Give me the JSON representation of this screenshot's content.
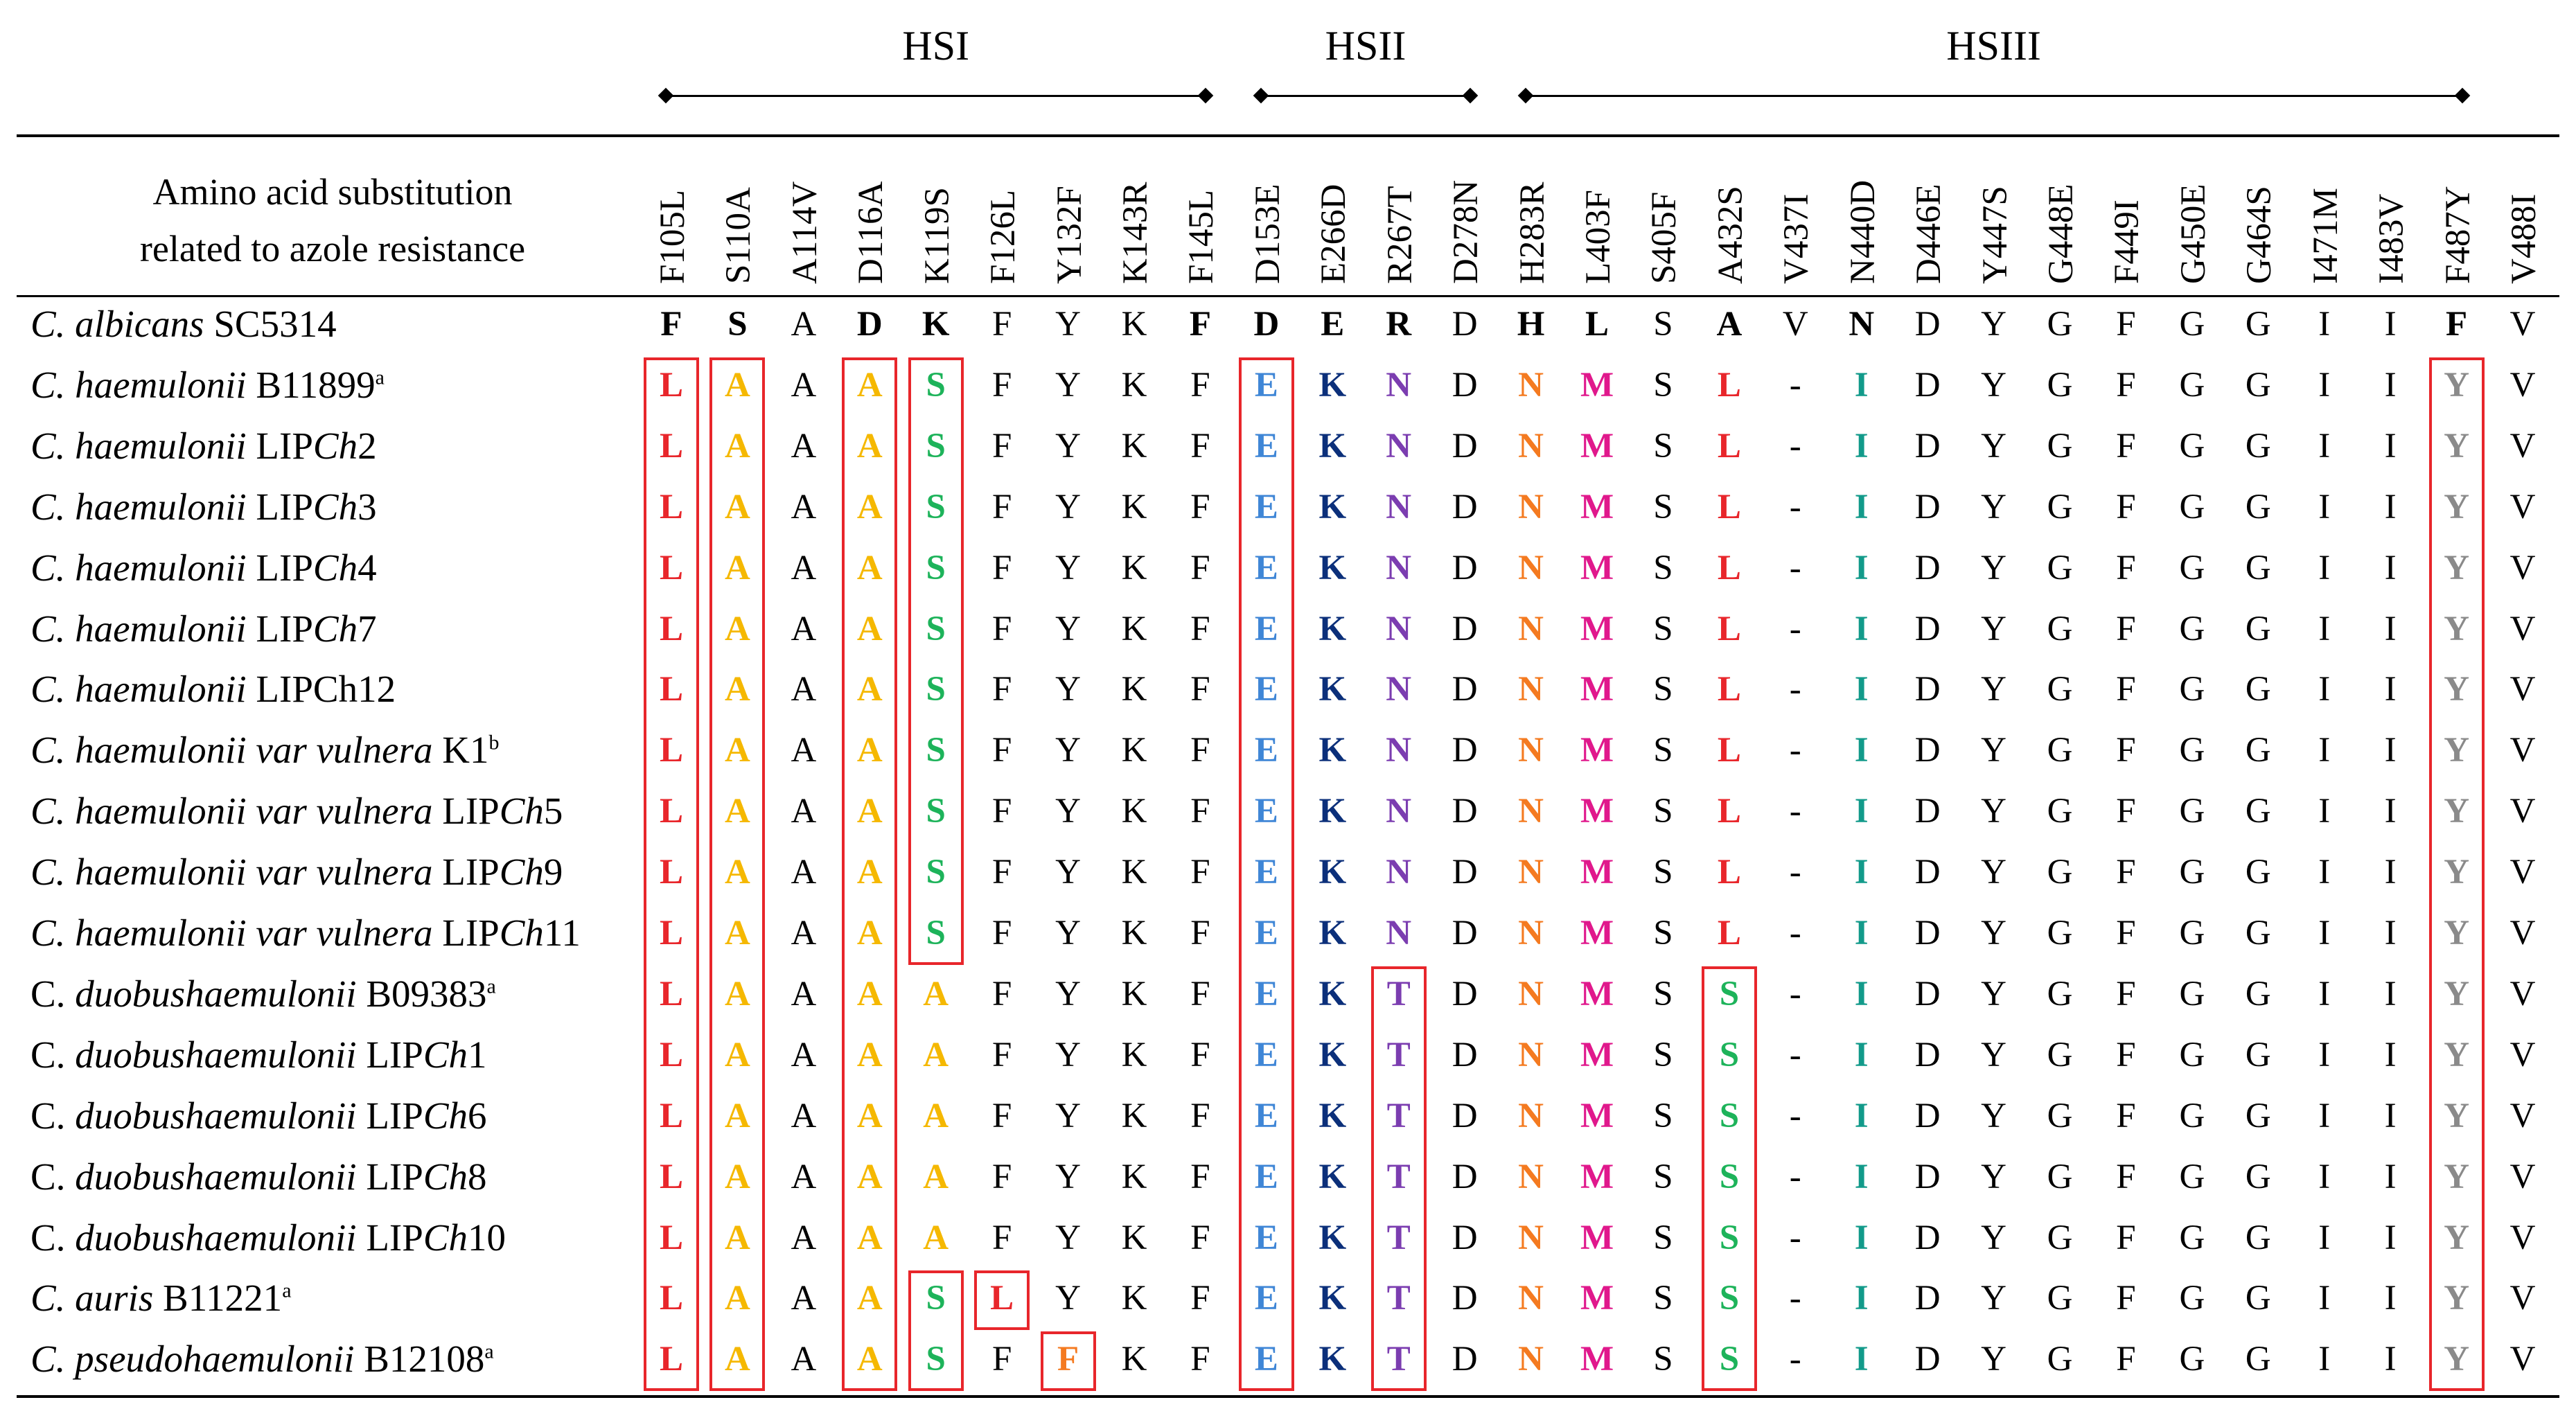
{
  "regions": [
    {
      "label": "HSI",
      "from": 0,
      "to": 8
    },
    {
      "label": "HSII",
      "from": 9,
      "to": 12
    },
    {
      "label": "HSIII",
      "from": 13,
      "to": 27
    }
  ],
  "header": {
    "line1": "Amino acid substitution",
    "line2": "related to azole resistance"
  },
  "columns": [
    "F105L",
    "S110A",
    "A114V",
    "D116A",
    "K119S",
    "F126L",
    "Y132F",
    "K143R",
    "F145L",
    "D153E",
    "E266D",
    "R267T",
    "D278N",
    "H283R",
    "L403F",
    "S405F",
    "A432S",
    "V437I",
    "N440D",
    "D446E",
    "Y447S",
    "G448E",
    "F449I",
    "G450E",
    "G464S",
    "I471M",
    "I483V",
    "F487Y",
    "V488I"
  ],
  "reference": {
    "name_parts": [
      {
        "t": "C. albicans",
        "i": true
      },
      {
        "t": " SC5314",
        "i": false
      }
    ],
    "cells": [
      "F",
      "S",
      "A",
      "D",
      "K",
      "F",
      "Y",
      "K",
      "F",
      "D",
      "E",
      "R",
      "D",
      "H",
      "L",
      "S",
      "A",
      "V",
      "N",
      "D",
      "Y",
      "G",
      "F",
      "G",
      "G",
      "I",
      "I",
      "F",
      "V"
    ],
    "bold": [
      0,
      1,
      3,
      4,
      8,
      9,
      10,
      11,
      13,
      14,
      16,
      18,
      27
    ]
  },
  "colors": {
    "L": "#e8262b",
    "A": "#f5b800",
    "S": "#1db35a",
    "E": "#3f86d6",
    "K": "#0b2f7a",
    "N": "#7b3db0",
    "T": "#7b3db0",
    "N283": "#f47a20",
    "M": "#e0188c",
    "I": "#129a8a",
    "Y": "#8a8a8a",
    "F126": "#e8262b",
    "F132": "#f47a20",
    "plain": "#000000"
  },
  "rows": [
    {
      "name_parts": [
        {
          "t": "C. haemulonii",
          "i": true
        },
        {
          "t": " B11899",
          "i": false
        }
      ],
      "sup": "a",
      "cells": [
        "L",
        "A",
        "A",
        "A",
        "S",
        "F",
        "Y",
        "K",
        "F",
        "E",
        "K",
        "N",
        "D",
        "N",
        "M",
        "S",
        "L",
        "-",
        "I",
        "D",
        "Y",
        "G",
        "F",
        "G",
        "G",
        "I",
        "I",
        "Y",
        "V"
      ]
    },
    {
      "name_parts": [
        {
          "t": "C. haemulonii",
          "i": true
        },
        {
          "t": " LIP",
          "i": false
        },
        {
          "t": "Ch",
          "i": true
        },
        {
          "t": "2",
          "i": false
        }
      ],
      "sup": "",
      "cells": [
        "L",
        "A",
        "A",
        "A",
        "S",
        "F",
        "Y",
        "K",
        "F",
        "E",
        "K",
        "N",
        "D",
        "N",
        "M",
        "S",
        "L",
        "-",
        "I",
        "D",
        "Y",
        "G",
        "F",
        "G",
        "G",
        "I",
        "I",
        "Y",
        "V"
      ]
    },
    {
      "name_parts": [
        {
          "t": "C. haemulonii",
          "i": true
        },
        {
          "t": " LIP",
          "i": false
        },
        {
          "t": "Ch",
          "i": true
        },
        {
          "t": "3",
          "i": false
        }
      ],
      "sup": "",
      "cells": [
        "L",
        "A",
        "A",
        "A",
        "S",
        "F",
        "Y",
        "K",
        "F",
        "E",
        "K",
        "N",
        "D",
        "N",
        "M",
        "S",
        "L",
        "-",
        "I",
        "D",
        "Y",
        "G",
        "F",
        "G",
        "G",
        "I",
        "I",
        "Y",
        "V"
      ]
    },
    {
      "name_parts": [
        {
          "t": "C. haemulonii",
          "i": true
        },
        {
          "t": " LIP",
          "i": false
        },
        {
          "t": "Ch",
          "i": true
        },
        {
          "t": "4",
          "i": false
        }
      ],
      "sup": "",
      "cells": [
        "L",
        "A",
        "A",
        "A",
        "S",
        "F",
        "Y",
        "K",
        "F",
        "E",
        "K",
        "N",
        "D",
        "N",
        "M",
        "S",
        "L",
        "-",
        "I",
        "D",
        "Y",
        "G",
        "F",
        "G",
        "G",
        "I",
        "I",
        "Y",
        "V"
      ]
    },
    {
      "name_parts": [
        {
          "t": "C. haemulonii",
          "i": true
        },
        {
          "t": " LIP",
          "i": false
        },
        {
          "t": "Ch",
          "i": true
        },
        {
          "t": "7",
          "i": false
        }
      ],
      "sup": "",
      "cells": [
        "L",
        "A",
        "A",
        "A",
        "S",
        "F",
        "Y",
        "K",
        "F",
        "E",
        "K",
        "N",
        "D",
        "N",
        "M",
        "S",
        "L",
        "-",
        "I",
        "D",
        "Y",
        "G",
        "F",
        "G",
        "G",
        "I",
        "I",
        "Y",
        "V"
      ]
    },
    {
      "name_parts": [
        {
          "t": "C. haemulonii",
          "i": true
        },
        {
          "t": " LIPCh12",
          "i": false
        }
      ],
      "sup": "",
      "cells": [
        "L",
        "A",
        "A",
        "A",
        "S",
        "F",
        "Y",
        "K",
        "F",
        "E",
        "K",
        "N",
        "D",
        "N",
        "M",
        "S",
        "L",
        "-",
        "I",
        "D",
        "Y",
        "G",
        "F",
        "G",
        "G",
        "I",
        "I",
        "Y",
        "V"
      ]
    },
    {
      "name_parts": [
        {
          "t": "C. haemulonii var vulnera",
          "i": true
        },
        {
          "t": " K1",
          "i": false
        }
      ],
      "sup": "b",
      "cells": [
        "L",
        "A",
        "A",
        "A",
        "S",
        "F",
        "Y",
        "K",
        "F",
        "E",
        "K",
        "N",
        "D",
        "N",
        "M",
        "S",
        "L",
        "-",
        "I",
        "D",
        "Y",
        "G",
        "F",
        "G",
        "G",
        "I",
        "I",
        "Y",
        "V"
      ]
    },
    {
      "name_parts": [
        {
          "t": "C. haemulonii var vulnera",
          "i": true
        },
        {
          "t": " LIP",
          "i": false
        },
        {
          "t": "Ch",
          "i": true
        },
        {
          "t": "5",
          "i": false
        }
      ],
      "sup": "",
      "cells": [
        "L",
        "A",
        "A",
        "A",
        "S",
        "F",
        "Y",
        "K",
        "F",
        "E",
        "K",
        "N",
        "D",
        "N",
        "M",
        "S",
        "L",
        "-",
        "I",
        "D",
        "Y",
        "G",
        "F",
        "G",
        "G",
        "I",
        "I",
        "Y",
        "V"
      ]
    },
    {
      "name_parts": [
        {
          "t": "C. haemulonii var vulnera",
          "i": true
        },
        {
          "t": " LIP",
          "i": false
        },
        {
          "t": "Ch",
          "i": true
        },
        {
          "t": "9",
          "i": false
        }
      ],
      "sup": "",
      "cells": [
        "L",
        "A",
        "A",
        "A",
        "S",
        "F",
        "Y",
        "K",
        "F",
        "E",
        "K",
        "N",
        "D",
        "N",
        "M",
        "S",
        "L",
        "-",
        "I",
        "D",
        "Y",
        "G",
        "F",
        "G",
        "G",
        "I",
        "I",
        "Y",
        "V"
      ]
    },
    {
      "name_parts": [
        {
          "t": "C. haemulonii var vulnera",
          "i": true
        },
        {
          "t": " LIP",
          "i": false
        },
        {
          "t": "Ch",
          "i": true
        },
        {
          "t": "11",
          "i": false
        }
      ],
      "sup": "",
      "cells": [
        "L",
        "A",
        "A",
        "A",
        "S",
        "F",
        "Y",
        "K",
        "F",
        "E",
        "K",
        "N",
        "D",
        "N",
        "M",
        "S",
        "L",
        "-",
        "I",
        "D",
        "Y",
        "G",
        "F",
        "G",
        "G",
        "I",
        "I",
        "Y",
        "V"
      ]
    },
    {
      "name_parts": [
        {
          "t": "C. ",
          "i": false
        },
        {
          "t": "duobushaemulonii",
          "i": true
        },
        {
          "t": " B09383",
          "i": false
        }
      ],
      "sup": "a",
      "cells": [
        "L",
        "A",
        "A",
        "A",
        "A",
        "F",
        "Y",
        "K",
        "F",
        "E",
        "K",
        "T",
        "D",
        "N",
        "M",
        "S",
        "S",
        "-",
        "I",
        "D",
        "Y",
        "G",
        "F",
        "G",
        "G",
        "I",
        "I",
        "Y",
        "V"
      ]
    },
    {
      "name_parts": [
        {
          "t": "C. ",
          "i": false
        },
        {
          "t": "duobushaemulonii",
          "i": true
        },
        {
          "t": " LIP",
          "i": false
        },
        {
          "t": "Ch",
          "i": true
        },
        {
          "t": "1",
          "i": false
        }
      ],
      "sup": "",
      "cells": [
        "L",
        "A",
        "A",
        "A",
        "A",
        "F",
        "Y",
        "K",
        "F",
        "E",
        "K",
        "T",
        "D",
        "N",
        "M",
        "S",
        "S",
        "-",
        "I",
        "D",
        "Y",
        "G",
        "F",
        "G",
        "G",
        "I",
        "I",
        "Y",
        "V"
      ]
    },
    {
      "name_parts": [
        {
          "t": "C. ",
          "i": false
        },
        {
          "t": "duobushaemulonii",
          "i": true
        },
        {
          "t": " LIP",
          "i": false
        },
        {
          "t": "Ch",
          "i": true
        },
        {
          "t": "6",
          "i": false
        }
      ],
      "sup": "",
      "cells": [
        "L",
        "A",
        "A",
        "A",
        "A",
        "F",
        "Y",
        "K",
        "F",
        "E",
        "K",
        "T",
        "D",
        "N",
        "M",
        "S",
        "S",
        "-",
        "I",
        "D",
        "Y",
        "G",
        "F",
        "G",
        "G",
        "I",
        "I",
        "Y",
        "V"
      ]
    },
    {
      "name_parts": [
        {
          "t": "C. ",
          "i": false
        },
        {
          "t": "duobushaemulonii",
          "i": true
        },
        {
          "t": " LIP",
          "i": false
        },
        {
          "t": "Ch",
          "i": true
        },
        {
          "t": "8",
          "i": false
        }
      ],
      "sup": "",
      "cells": [
        "L",
        "A",
        "A",
        "A",
        "A",
        "F",
        "Y",
        "K",
        "F",
        "E",
        "K",
        "T",
        "D",
        "N",
        "M",
        "S",
        "S",
        "-",
        "I",
        "D",
        "Y",
        "G",
        "F",
        "G",
        "G",
        "I",
        "I",
        "Y",
        "V"
      ]
    },
    {
      "name_parts": [
        {
          "t": "C. ",
          "i": false
        },
        {
          "t": "duobushaemulonii",
          "i": true
        },
        {
          "t": " LIP",
          "i": false
        },
        {
          "t": "Ch",
          "i": true
        },
        {
          "t": "10",
          "i": false
        }
      ],
      "sup": "",
      "cells": [
        "L",
        "A",
        "A",
        "A",
        "A",
        "F",
        "Y",
        "K",
        "F",
        "E",
        "K",
        "T",
        "D",
        "N",
        "M",
        "S",
        "S",
        "-",
        "I",
        "D",
        "Y",
        "G",
        "F",
        "G",
        "G",
        "I",
        "I",
        "Y",
        "V"
      ]
    },
    {
      "name_parts": [
        {
          "t": "C. auris",
          "i": true
        },
        {
          "t": " B11221",
          "i": false
        }
      ],
      "sup": "a",
      "cells": [
        "L",
        "A",
        "A",
        "A",
        "S",
        "L",
        "Y",
        "K",
        "F",
        "E",
        "K",
        "T",
        "D",
        "N",
        "M",
        "S",
        "S",
        "-",
        "I",
        "D",
        "Y",
        "G",
        "F",
        "G",
        "G",
        "I",
        "I",
        "Y",
        "V"
      ]
    },
    {
      "name_parts": [
        {
          "t": "C. pseudohaemulonii",
          "i": true
        },
        {
          "t": " B12108",
          "i": false
        }
      ],
      "sup": "a",
      "cells": [
        "L",
        "A",
        "A",
        "A",
        "S",
        "F",
        "F",
        "K",
        "F",
        "E",
        "K",
        "T",
        "D",
        "N",
        "M",
        "S",
        "S",
        "-",
        "I",
        "D",
        "Y",
        "G",
        "F",
        "G",
        "G",
        "I",
        "I",
        "Y",
        "V"
      ]
    }
  ],
  "boxes": [
    {
      "col_from": 0,
      "col_to": 0,
      "row_from": 0,
      "row_to": 16
    },
    {
      "col_from": 1,
      "col_to": 1,
      "row_from": 0,
      "row_to": 16
    },
    {
      "col_from": 3,
      "col_to": 3,
      "row_from": 0,
      "row_to": 16
    },
    {
      "col_from": 4,
      "col_to": 4,
      "row_from": 0,
      "row_to": 9
    },
    {
      "col_from": 9,
      "col_to": 9,
      "row_from": 0,
      "row_to": 16
    },
    {
      "col_from": 11,
      "col_to": 11,
      "row_from": 10,
      "row_to": 16
    },
    {
      "col_from": 16,
      "col_to": 16,
      "row_from": 10,
      "row_to": 16
    },
    {
      "col_from": 27,
      "col_to": 27,
      "row_from": 0,
      "row_to": 16
    },
    {
      "col_from": 4,
      "col_to": 4,
      "row_from": 15,
      "row_to": 16
    },
    {
      "col_from": 5,
      "col_to": 5,
      "row_from": 15,
      "row_to": 15
    },
    {
      "col_from": 6,
      "col_to": 6,
      "row_from": 16,
      "row_to": 16
    }
  ]
}
